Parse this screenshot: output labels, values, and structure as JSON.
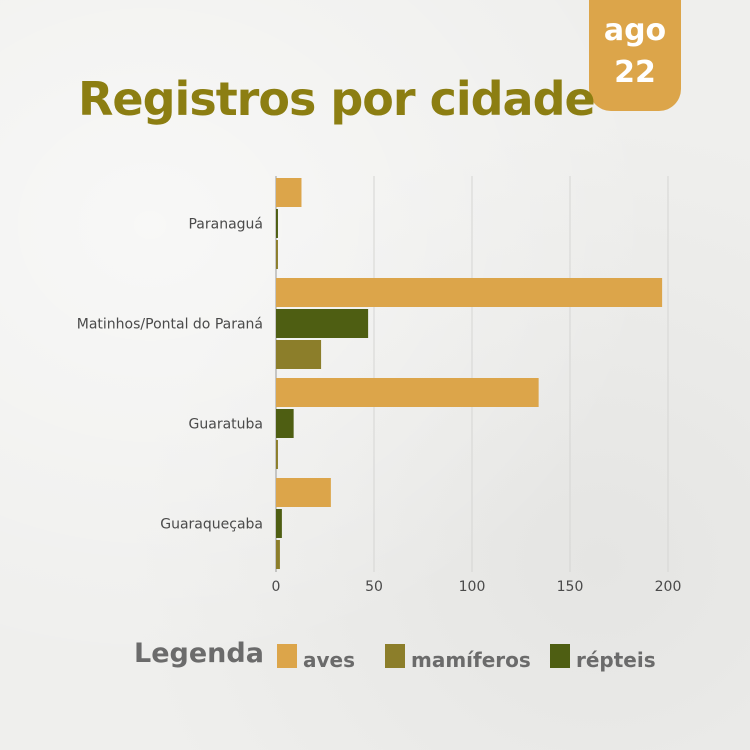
{
  "badge": {
    "month": "ago",
    "day": "22"
  },
  "colors": {
    "aves": "#dca54a",
    "mamiferos": "#8c7e2a",
    "repteis": "#4e5e12",
    "grid": "#d5d5d3"
  },
  "legend": {
    "title": "Legenda",
    "items": [
      {
        "label": "aves",
        "color": "#dca54a"
      },
      {
        "label": "mamíferos",
        "color": "#8c7e2a"
      },
      {
        "label": "répteis",
        "color": "#4e5e12"
      }
    ]
  },
  "chart_data": {
    "type": "bar",
    "orientation": "horizontal",
    "title": "Registros por cidade",
    "categories": [
      "Paranaguá",
      "Matinhos/Pontal do Paraná",
      "Guaratuba",
      "Guaraqueçaba"
    ],
    "series": [
      {
        "name": "aves",
        "values": [
          13,
          197,
          134,
          28
        ]
      },
      {
        "name": "répteis",
        "values": [
          1,
          47,
          9,
          3
        ]
      },
      {
        "name": "mamíferos",
        "values": [
          1,
          23,
          1,
          2
        ]
      }
    ],
    "xlim": [
      0,
      200
    ],
    "xticks": [
      0,
      50,
      100,
      150,
      200
    ],
    "grid": true
  }
}
